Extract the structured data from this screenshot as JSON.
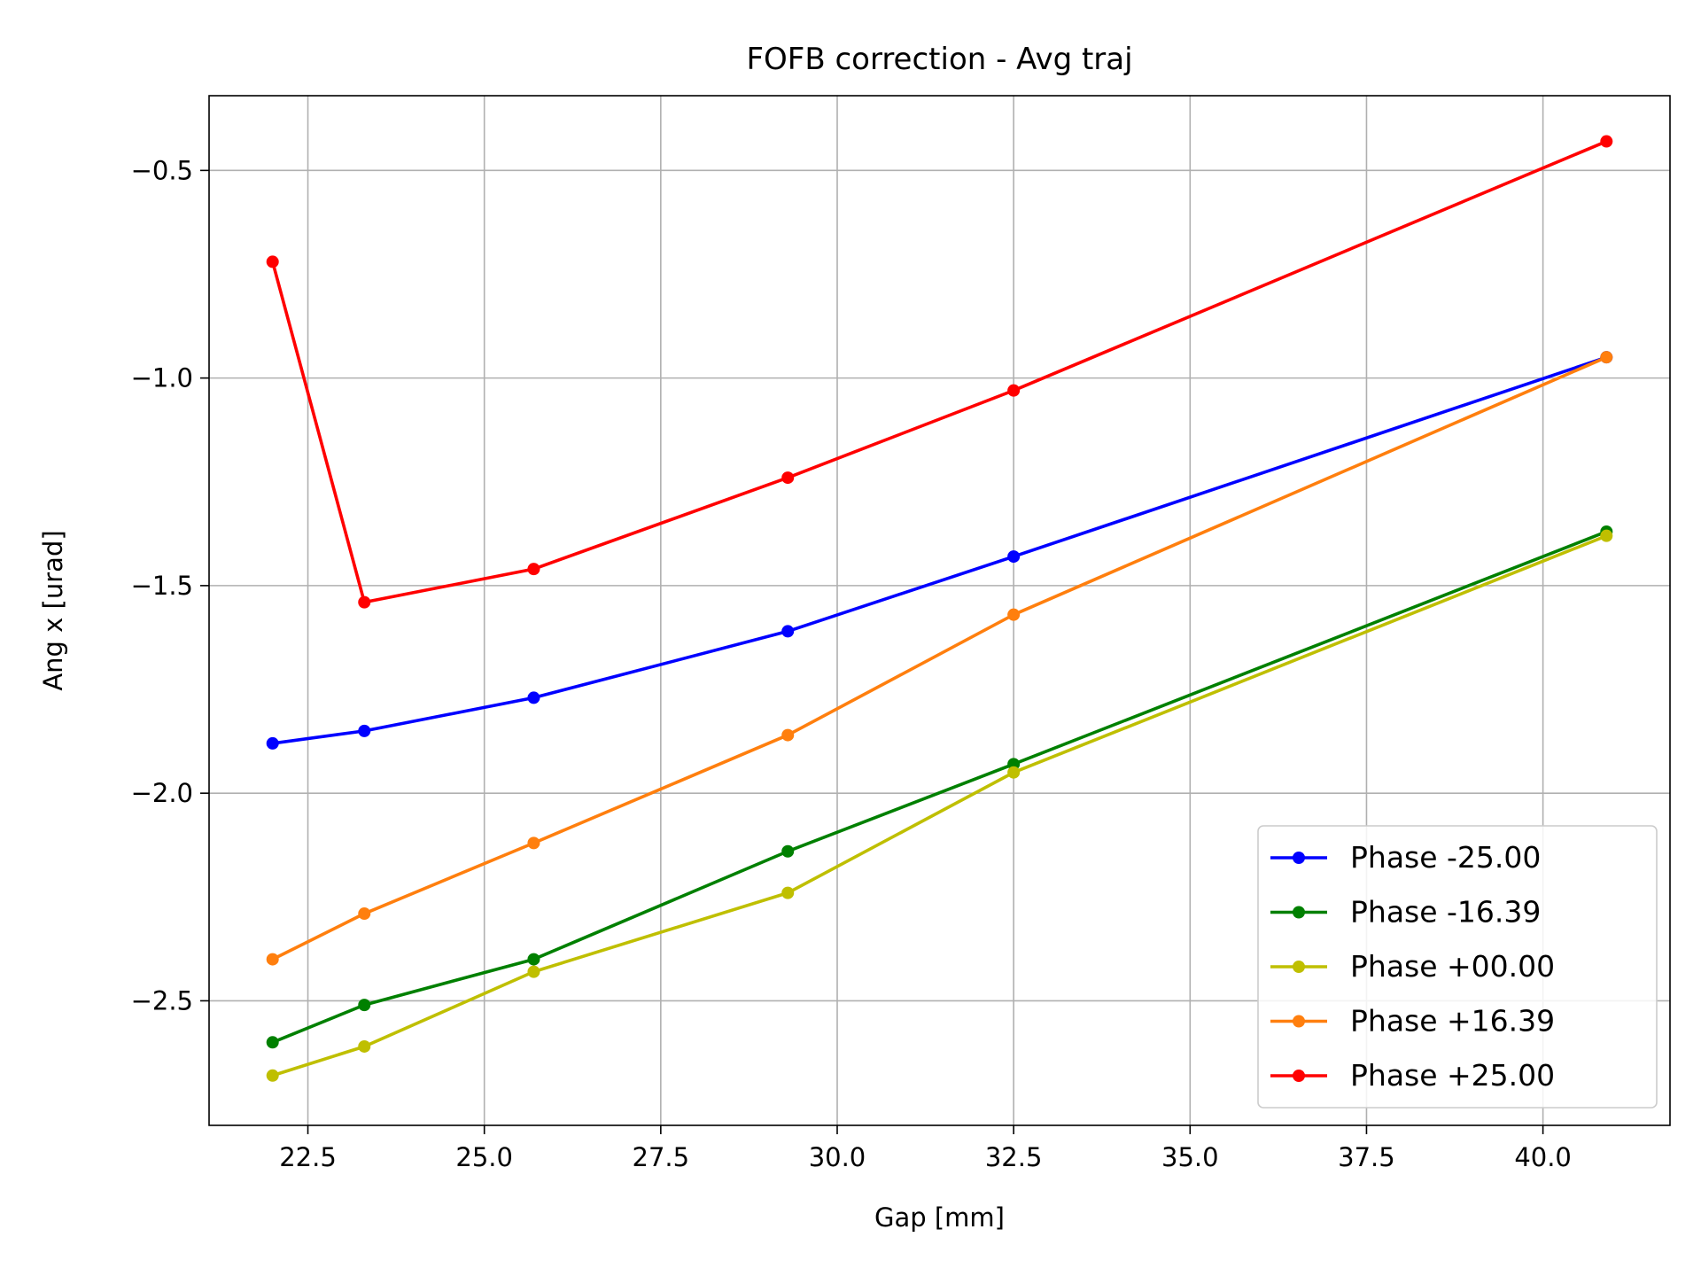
{
  "chart_data": {
    "type": "line",
    "title": "FOFB correction - Avg traj",
    "xlabel": "Gap [mm]",
    "ylabel": "Ang x [urad]",
    "xlim": [
      21.1,
      41.8
    ],
    "ylim": [
      -2.8,
      -0.32
    ],
    "xticks": [
      22.5,
      25.0,
      27.5,
      30.0,
      32.5,
      35.0,
      37.5,
      40.0
    ],
    "xtick_labels": [
      "22.5",
      "25.0",
      "27.5",
      "30.0",
      "32.5",
      "35.0",
      "37.5",
      "40.0"
    ],
    "yticks": [
      -2.5,
      -2.0,
      -1.5,
      -1.0,
      -0.5
    ],
    "ytick_labels": [
      "−2.5",
      "−2.0",
      "−1.5",
      "−1.0",
      "−0.5"
    ],
    "grid": true,
    "legend_position": "lower-right",
    "x": [
      22.0,
      23.3,
      25.7,
      29.3,
      32.5,
      40.9
    ],
    "series": [
      {
        "name": "Phase -25.00",
        "color": "#0000ff",
        "values": [
          -1.88,
          -1.85,
          -1.77,
          -1.61,
          -1.43,
          -0.95
        ]
      },
      {
        "name": "Phase -16.39",
        "color": "#008000",
        "values": [
          -2.6,
          -2.51,
          -2.4,
          -2.14,
          -1.93,
          -1.37
        ]
      },
      {
        "name": "Phase +00.00",
        "color": "#bfbf00",
        "values": [
          -2.68,
          -2.61,
          -2.43,
          -2.24,
          -1.95,
          -1.38
        ]
      },
      {
        "name": "Phase +16.39",
        "color": "#ff7f0e",
        "values": [
          -2.4,
          -2.29,
          -2.12,
          -1.86,
          -1.57,
          -0.95
        ]
      },
      {
        "name": "Phase +25.00",
        "color": "#ff0000",
        "values": [
          -0.72,
          -1.54,
          -1.46,
          -1.24,
          -1.03,
          -0.43
        ]
      }
    ]
  }
}
